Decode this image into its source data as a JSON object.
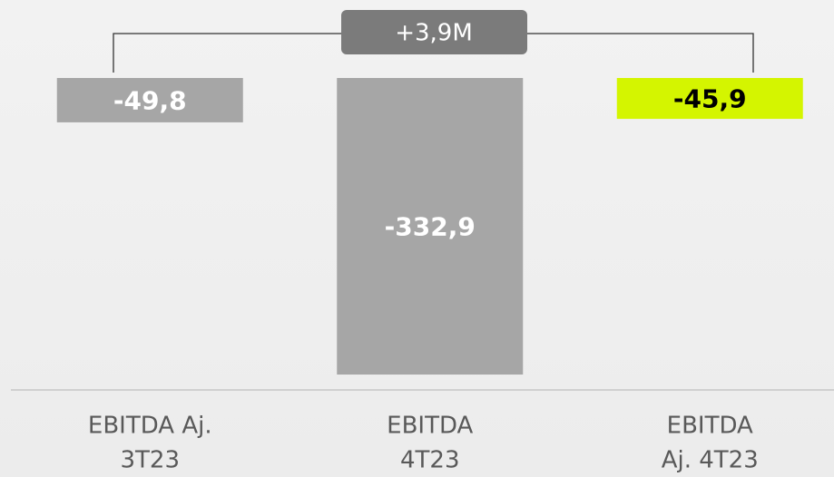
{
  "chart_data": {
    "type": "bar",
    "categories": [
      [
        "EBITDA Aj.",
        "3T23"
      ],
      [
        "EBITDA",
        "4T23"
      ],
      [
        "EBITDA",
        "Aj. 4T23"
      ]
    ],
    "values": [
      -49.8,
      -332.9,
      -45.9
    ],
    "value_labels": [
      "-49,8",
      "-332,9",
      "-45,9"
    ],
    "colors": [
      "#a6a6a6",
      "#a6a6a6",
      "#d4f500"
    ],
    "label_colors": [
      "#ffffff",
      "#ffffff",
      "#000000"
    ],
    "ylim": [
      -340,
      0
    ],
    "annotation": "+3,9M"
  }
}
